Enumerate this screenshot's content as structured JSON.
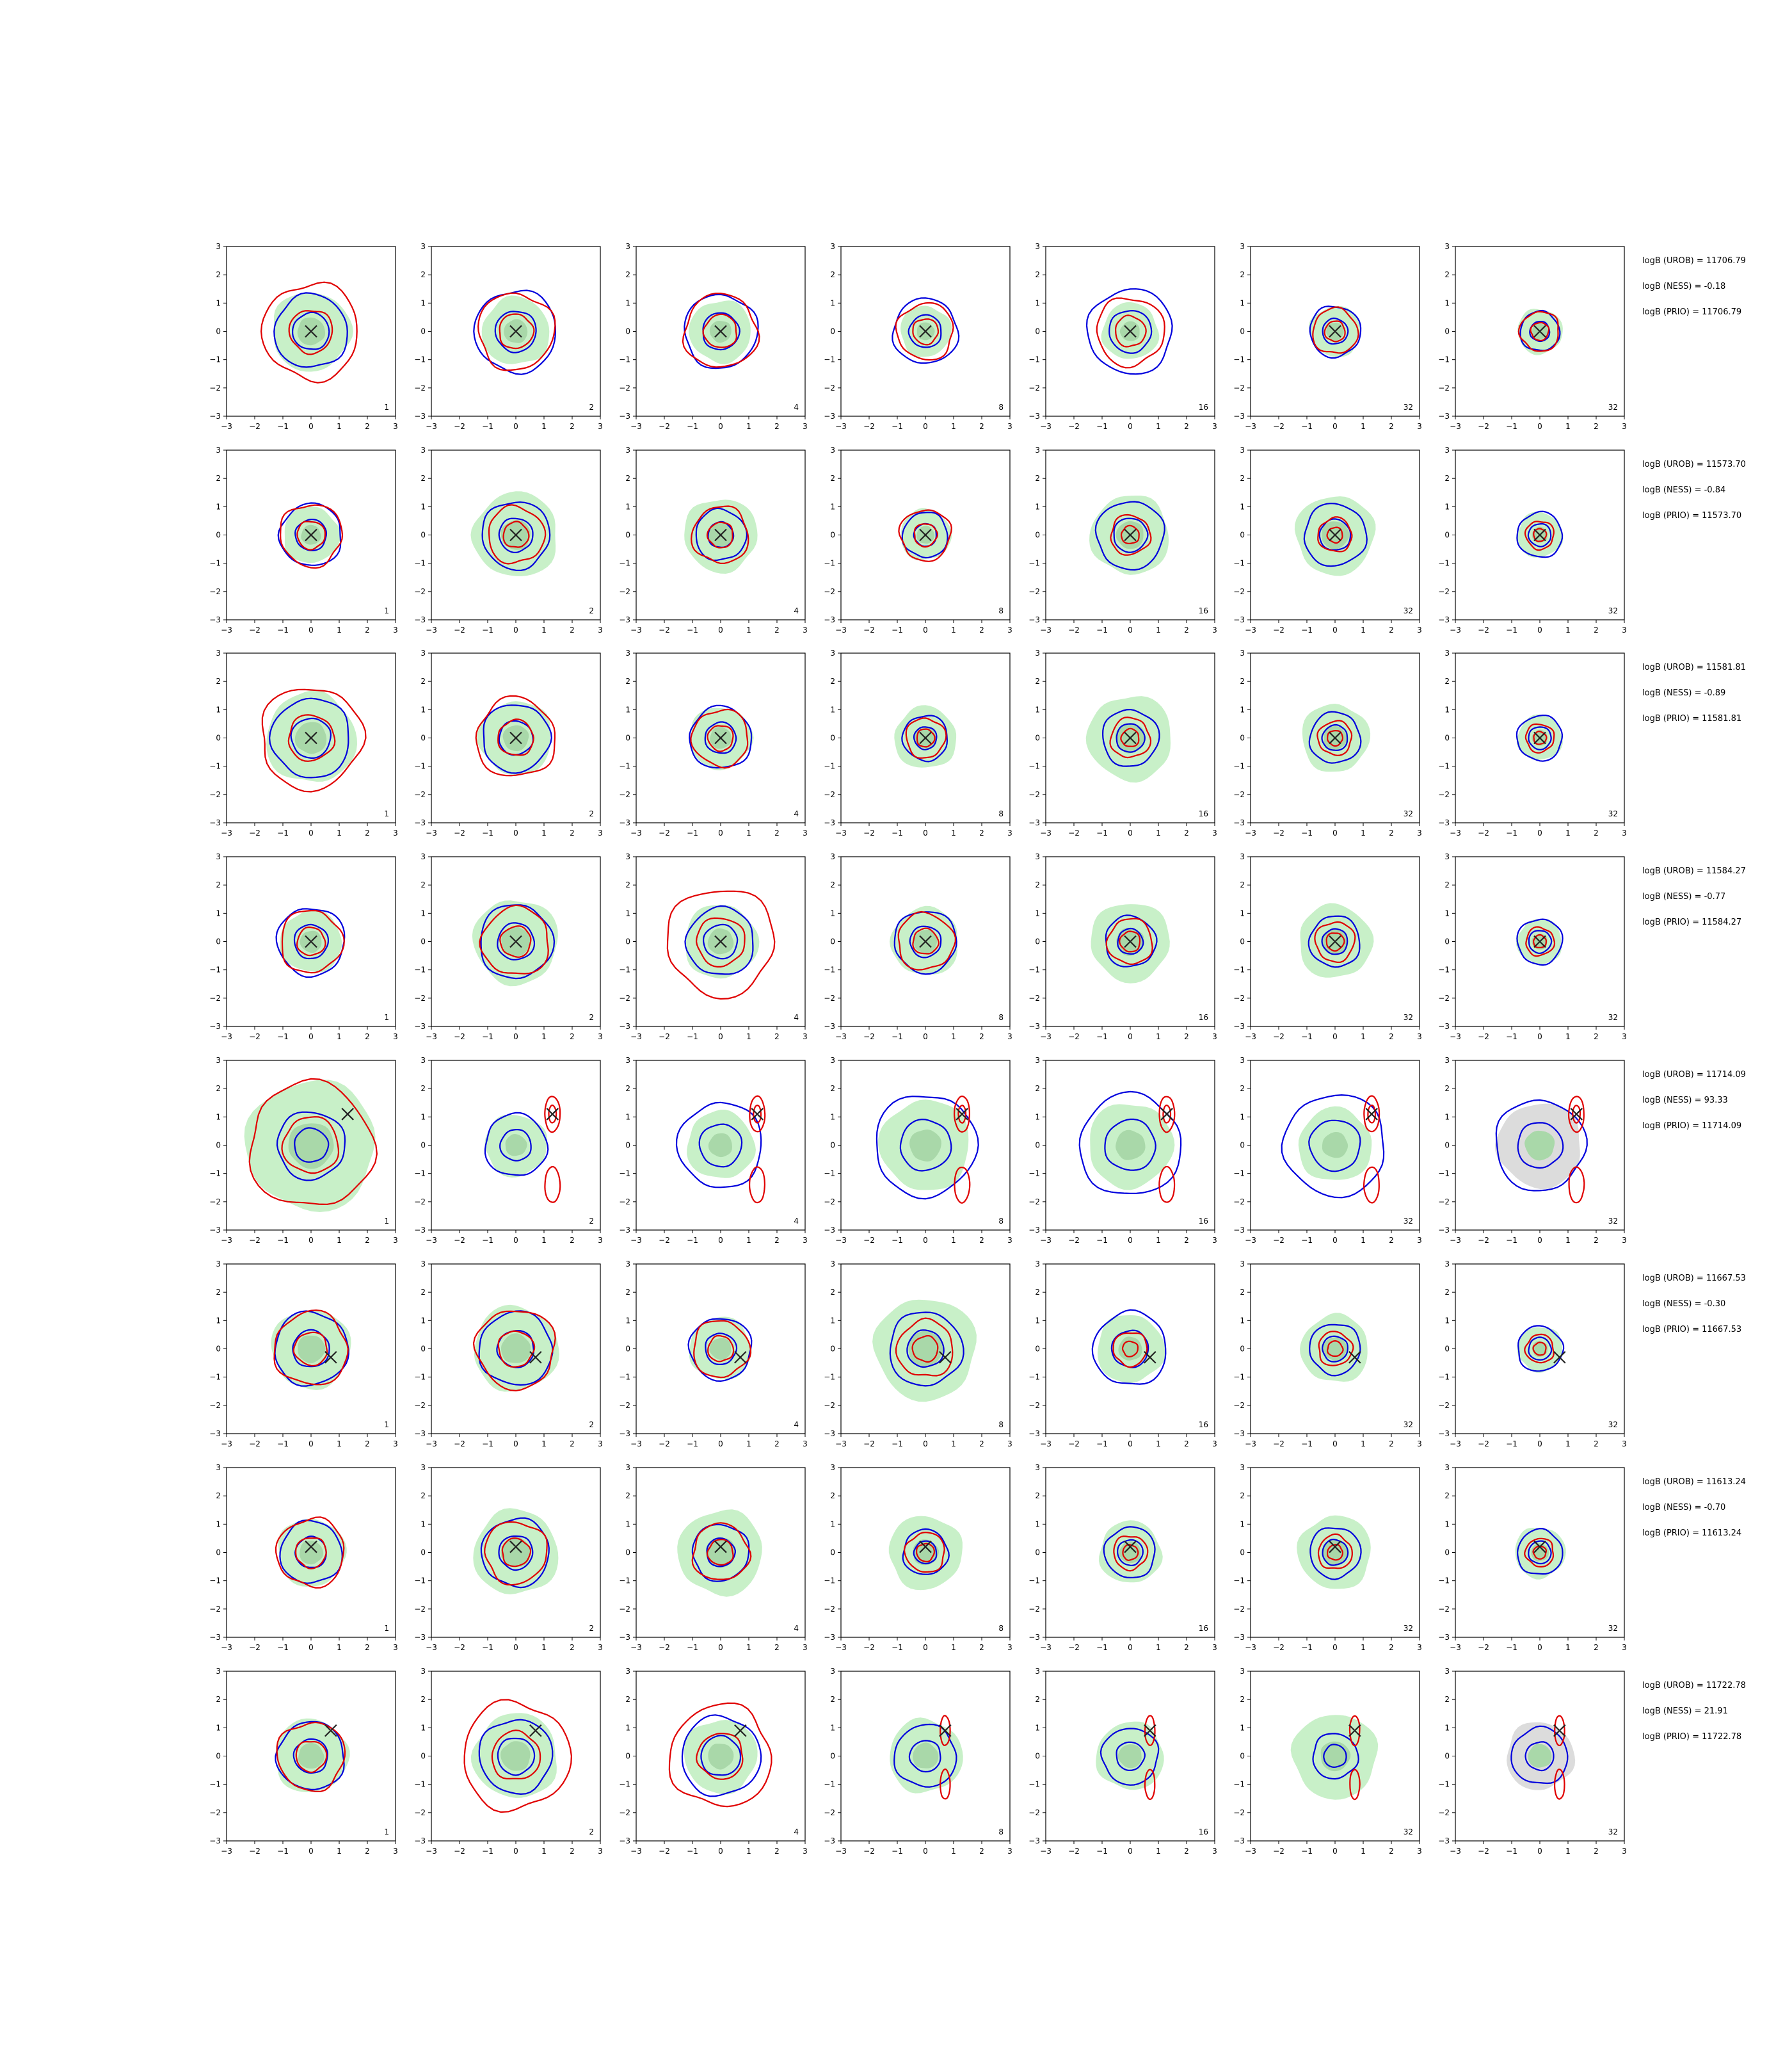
{
  "chart_data": {
    "type": "contour-grid",
    "x_ticks": [
      "−3",
      "−2",
      "−1",
      "0",
      "1",
      "2",
      "3"
    ],
    "y_ticks": [
      "3",
      "2",
      "1",
      "0",
      "−1",
      "−2",
      "−3"
    ],
    "xlim": [
      -3,
      3
    ],
    "ylim": [
      -3,
      3
    ],
    "column_labels": [
      "1",
      "2",
      "4",
      "8",
      "16",
      "32",
      "32"
    ],
    "colors": {
      "green_fill": "#c8f0c8",
      "green_core": "#a9d8a9",
      "gray_fill": "#dcdcdc",
      "red": "#e00000",
      "blue": "#0000dd",
      "marker": "#222222"
    },
    "rows": [
      {
        "marker": [
          0,
          0
        ],
        "stats": [
          "logB (UROB) = 11706.79",
          "logB (NESS) = -0.18",
          "logB (PRIO) = 11706.79"
        ],
        "green": [
          1.4,
          1.2,
          1.1,
          0.9,
          1.0,
          0.9,
          0.8
        ],
        "blue": [
          1.3,
          1.45,
          1.3,
          1.15,
          1.5,
          0.9,
          0.7
        ],
        "red": [
          1.7,
          1.35,
          1.3,
          1.0,
          1.2,
          0.8,
          0.7
        ]
      },
      {
        "marker": [
          0,
          0
        ],
        "stats": [
          "logB (UROB) = 11573.70",
          "logB (NESS) = -0.84",
          "logB (PRIO) = 11573.70"
        ],
        "green": [
          1.0,
          1.5,
          1.3,
          0.9,
          1.4,
          1.4,
          0.8
        ],
        "blue": [
          1.1,
          1.2,
          0.9,
          0.8,
          1.2,
          1.1,
          0.8
        ],
        "red": [
          1.1,
          1.0,
          1.0,
          0.9,
          0.7,
          0.6,
          0.5
        ]
      },
      {
        "marker": [
          0,
          0
        ],
        "stats": [
          "logB (UROB) = 11581.81",
          "logB (NESS) = -0.89",
          "logB (PRIO) = 11581.81"
        ],
        "green": [
          1.6,
          1.3,
          1.1,
          1.1,
          1.5,
          1.2,
          0.8
        ],
        "blue": [
          1.4,
          1.2,
          1.1,
          0.8,
          1.0,
          0.9,
          0.8
        ],
        "red": [
          1.8,
          1.4,
          1.0,
          0.7,
          0.7,
          0.6,
          0.5
        ]
      },
      {
        "marker": [
          0,
          0
        ],
        "stats": [
          "logB (UROB) = 11584.27",
          "logB (NESS) = -0.77",
          "logB (PRIO) = 11584.27"
        ],
        "green": [
          1.1,
          1.5,
          1.3,
          1.2,
          1.4,
          1.3,
          0.8
        ],
        "blue": [
          1.2,
          1.3,
          1.2,
          1.1,
          0.9,
          0.9,
          0.8
        ],
        "red": [
          1.1,
          1.2,
          1.9,
          1.0,
          0.8,
          0.7,
          0.5
        ]
      },
      {
        "marker": [
          1.3,
          1.1
        ],
        "stats": [
          "logB (UROB) = 11714.09",
          "logB (NESS) = 93.33",
          "logB (PRIO) = 11714.09"
        ],
        "green": [
          2.3,
          1.1,
          1.2,
          1.6,
          1.5,
          1.3,
          1.5
        ],
        "blue": [
          1.2,
          1.1,
          1.5,
          1.8,
          1.8,
          1.8,
          1.6
        ],
        "red": [
          2.2,
          1.2,
          1.2,
          1.1,
          1.0,
          1.0,
          1.0
        ]
      },
      {
        "marker": [
          0.7,
          -0.3
        ],
        "stats": [
          "logB (UROB) = 11667.53",
          "logB (NESS) = -0.30",
          "logB (PRIO) = 11667.53"
        ],
        "green": [
          1.4,
          1.5,
          1.1,
          1.8,
          1.2,
          1.2,
          0.8
        ],
        "blue": [
          1.3,
          1.3,
          1.1,
          1.3,
          1.3,
          0.9,
          0.8
        ],
        "red": [
          1.3,
          1.4,
          1.0,
          1.0,
          0.6,
          0.6,
          0.5
        ]
      },
      {
        "marker": [
          0,
          0.2
        ],
        "stats": [
          "logB (UROB) = 11613.24",
          "logB (NESS) = -0.70",
          "logB (PRIO) = 11613.24"
        ],
        "green": [
          1.2,
          1.5,
          1.5,
          1.3,
          1.1,
          1.3,
          0.9
        ],
        "blue": [
          1.1,
          1.2,
          1.0,
          0.8,
          0.9,
          0.9,
          0.8
        ],
        "red": [
          1.2,
          1.1,
          1.0,
          0.7,
          0.6,
          0.6,
          0.5
        ]
      },
      {
        "marker": [
          0.7,
          0.9
        ],
        "stats": [
          "logB (UROB) = 11722.78",
          "logB (NESS) = 21.91",
          "logB (PRIO) = 11722.78"
        ],
        "green": [
          1.3,
          1.5,
          1.3,
          1.3,
          1.2,
          1.5,
          1.2
        ],
        "blue": [
          1.2,
          1.3,
          1.4,
          1.1,
          1.0,
          0.8,
          1.0
        ],
        "red": [
          1.2,
          1.9,
          1.8,
          1.5,
          1.1,
          1.0,
          1.0
        ]
      }
    ]
  }
}
